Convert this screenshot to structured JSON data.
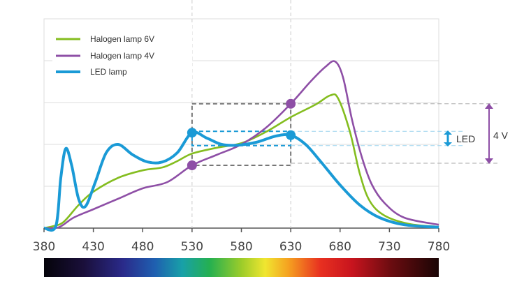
{
  "chart_data": {
    "type": "line",
    "xlabel": "",
    "ylabel": "",
    "xlim": [
      380,
      780
    ],
    "ylim": [
      0,
      5
    ],
    "x_ticks": [
      "380",
      "430",
      "480",
      "530",
      "580",
      "630",
      "680",
      "730",
      "780"
    ],
    "grid": true,
    "legend_position": "top-left",
    "series": [
      {
        "name": "Halogen lamp 6V",
        "color": "#84bd1f",
        "points": [
          [
            380,
            0
          ],
          [
            390,
            0.05
          ],
          [
            400,
            0.15
          ],
          [
            415,
            0.55
          ],
          [
            430,
            0.87
          ],
          [
            455,
            1.2
          ],
          [
            480,
            1.38
          ],
          [
            500,
            1.45
          ],
          [
            515,
            1.6
          ],
          [
            530,
            1.78
          ],
          [
            555,
            1.92
          ],
          [
            580,
            2.03
          ],
          [
            605,
            2.3
          ],
          [
            630,
            2.65
          ],
          [
            655,
            2.95
          ],
          [
            670,
            3.17
          ],
          [
            678,
            3.1
          ],
          [
            690,
            2.3
          ],
          [
            700,
            1.3
          ],
          [
            710,
            0.65
          ],
          [
            725,
            0.3
          ],
          [
            750,
            0.1
          ],
          [
            780,
            0.03
          ]
        ]
      },
      {
        "name": "Halogen lamp 4V",
        "color": "#8e4fa6",
        "points": [
          [
            380,
            0
          ],
          [
            395,
            0.02
          ],
          [
            410,
            0.25
          ],
          [
            430,
            0.45
          ],
          [
            455,
            0.7
          ],
          [
            480,
            0.95
          ],
          [
            505,
            1.1
          ],
          [
            530,
            1.5
          ],
          [
            555,
            1.75
          ],
          [
            580,
            2.0
          ],
          [
            605,
            2.4
          ],
          [
            630,
            2.97
          ],
          [
            650,
            3.5
          ],
          [
            665,
            3.85
          ],
          [
            675,
            3.98
          ],
          [
            683,
            3.6
          ],
          [
            692,
            2.6
          ],
          [
            702,
            1.7
          ],
          [
            712,
            1.05
          ],
          [
            725,
            0.6
          ],
          [
            745,
            0.25
          ],
          [
            780,
            0.08
          ]
        ]
      },
      {
        "name": "LED lamp",
        "color": "#1a9ad6",
        "points": [
          [
            380,
            0
          ],
          [
            392,
            0.05
          ],
          [
            397,
            1.2
          ],
          [
            402,
            1.9
          ],
          [
            408,
            1.5
          ],
          [
            415,
            0.7
          ],
          [
            422,
            0.52
          ],
          [
            432,
            1.1
          ],
          [
            443,
            1.8
          ],
          [
            455,
            2.0
          ],
          [
            470,
            1.75
          ],
          [
            485,
            1.58
          ],
          [
            500,
            1.58
          ],
          [
            515,
            1.8
          ],
          [
            530,
            2.28
          ],
          [
            545,
            2.15
          ],
          [
            560,
            2.0
          ],
          [
            575,
            1.98
          ],
          [
            595,
            2.05
          ],
          [
            615,
            2.2
          ],
          [
            630,
            2.22
          ],
          [
            645,
            2.0
          ],
          [
            660,
            1.6
          ],
          [
            680,
            1.03
          ],
          [
            700,
            0.55
          ],
          [
            720,
            0.25
          ],
          [
            745,
            0.08
          ],
          [
            780,
            0.02
          ]
        ]
      }
    ],
    "markers": [
      {
        "series": "LED lamp",
        "x": 530,
        "y": 2.28
      },
      {
        "series": "LED lamp",
        "x": 630,
        "y": 2.22
      },
      {
        "series": "Halogen lamp 4V",
        "x": 530,
        "y": 1.5
      },
      {
        "series": "Halogen lamp 4V",
        "x": 630,
        "y": 2.97
      }
    ],
    "annotations": {
      "led_label": "LED",
      "v4_label": "4 V"
    },
    "colorbar": "visible spectrum 380–780 nm"
  }
}
